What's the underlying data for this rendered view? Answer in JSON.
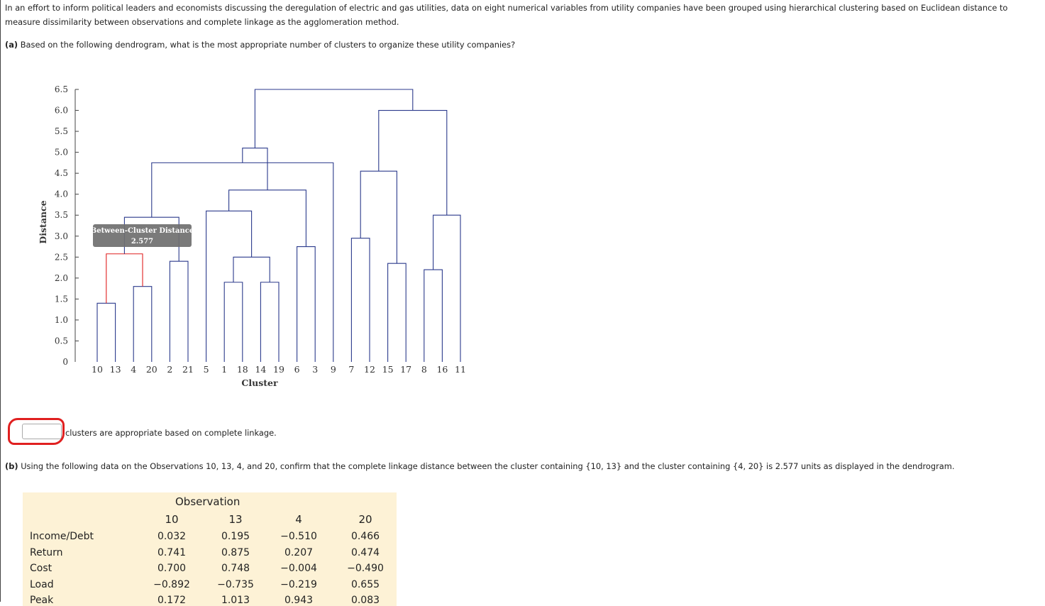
{
  "intro": "In an effort to inform political leaders and economists discussing the deregulation of electric and gas utilities, data on eight numerical variables from utility companies have been grouped using hierarchical clustering based on Euclidean distance to measure dissimilarity between observations and complete linkage as the agglomeration method.",
  "part_a": {
    "label": "(a)",
    "question": "Based on the following dendrogram, what is the most appropriate number of clusters to organize these utility companies?",
    "answer_value": "",
    "answer_suffix": "clusters are appropriate based on complete linkage."
  },
  "chart_data": {
    "type": "dendrogram",
    "ylabel": "Distance",
    "xlabel": "Cluster",
    "ylim": [
      0,
      6.5
    ],
    "yticks": [
      "0",
      "0.5",
      "1.0",
      "1.5",
      "2.0",
      "2.5",
      "3.0",
      "3.5",
      "4.0",
      "4.5",
      "5.0",
      "5.5",
      "6.0",
      "6.5"
    ],
    "leaves": [
      "10",
      "13",
      "4",
      "20",
      "2",
      "21",
      "5",
      "1",
      "18",
      "14",
      "19",
      "6",
      "3",
      "9",
      "7",
      "12",
      "15",
      "17",
      "8",
      "16",
      "11"
    ],
    "merges": [
      {
        "a": "10",
        "b": "13",
        "h": 1.4
      },
      {
        "a": "4",
        "b": "20",
        "h": 1.8
      },
      {
        "a": "2",
        "b": "21",
        "h": 2.4
      },
      {
        "a": "1",
        "b": "18",
        "h": 1.9
      },
      {
        "a": "14",
        "b": "19",
        "h": 1.9
      },
      {
        "a": "6",
        "b": "3",
        "h": 2.75
      },
      {
        "a": "7",
        "b": "12",
        "h": 2.95
      },
      {
        "a": "15",
        "b": "17",
        "h": 2.35
      },
      {
        "a": "8",
        "b": "16",
        "h": 2.2
      },
      {
        "a": "{10,13}",
        "b": "{4,20}",
        "h": 2.577
      },
      {
        "a": "{10,13,4,20}",
        "b": "{2,21}",
        "h": 3.45
      },
      {
        "a": "{1,18}",
        "b": "{14,19}",
        "h": 2.5
      },
      {
        "a": "{1,18,14,19}",
        "b": "5",
        "h": 3.6
      },
      {
        "a": "{1,18,14,19,5}",
        "b": "{6,3}",
        "h": 4.1
      },
      {
        "a": "{7,12}",
        "b": "{15,17}",
        "h": 4.55
      },
      {
        "a": "{8,16}",
        "b": "11",
        "h": 3.5
      },
      {
        "a": "{10,13,4,20,2,21}",
        "b": "9",
        "h": 4.75
      },
      {
        "a": "left",
        "b": "middle",
        "h": 5.1
      },
      {
        "a": "{7,12,15,17}",
        "b": "{8,16,11}",
        "h": 6.0
      },
      {
        "a": "all-left",
        "b": "all-right",
        "h": 6.5
      }
    ],
    "tooltip": {
      "title": "Between-Cluster Distance",
      "value": "2.577"
    },
    "highlight_color": "#e02020",
    "line_color": "#2b3a8c"
  },
  "part_b": {
    "label": "(b)",
    "question": "Using the following data on the Observations 10, 13, 4, and 20, confirm that the complete linkage distance between the cluster containing {10, 13} and the cluster containing {4, 20} is 2.577 units as displayed in the dendrogram."
  },
  "obs_table": {
    "header": "Observation",
    "columns": [
      "10",
      "13",
      "4",
      "20"
    ],
    "rows": [
      {
        "label": "Income/Debt",
        "values": [
          "0.032",
          "0.195",
          "−0.510",
          "0.466"
        ]
      },
      {
        "label": "Return",
        "values": [
          "0.741",
          "0.875",
          "0.207",
          "0.474"
        ]
      },
      {
        "label": "Cost",
        "values": [
          "0.700",
          "0.748",
          "−0.004",
          "−0.490"
        ]
      },
      {
        "label": "Load",
        "values": [
          "−0.892",
          "−0.735",
          "−0.219",
          "0.655"
        ]
      },
      {
        "label": "Peak",
        "values": [
          "0.172",
          "1.013",
          "0.943",
          "0.083"
        ]
      }
    ],
    "background": "#fdf2d6"
  }
}
